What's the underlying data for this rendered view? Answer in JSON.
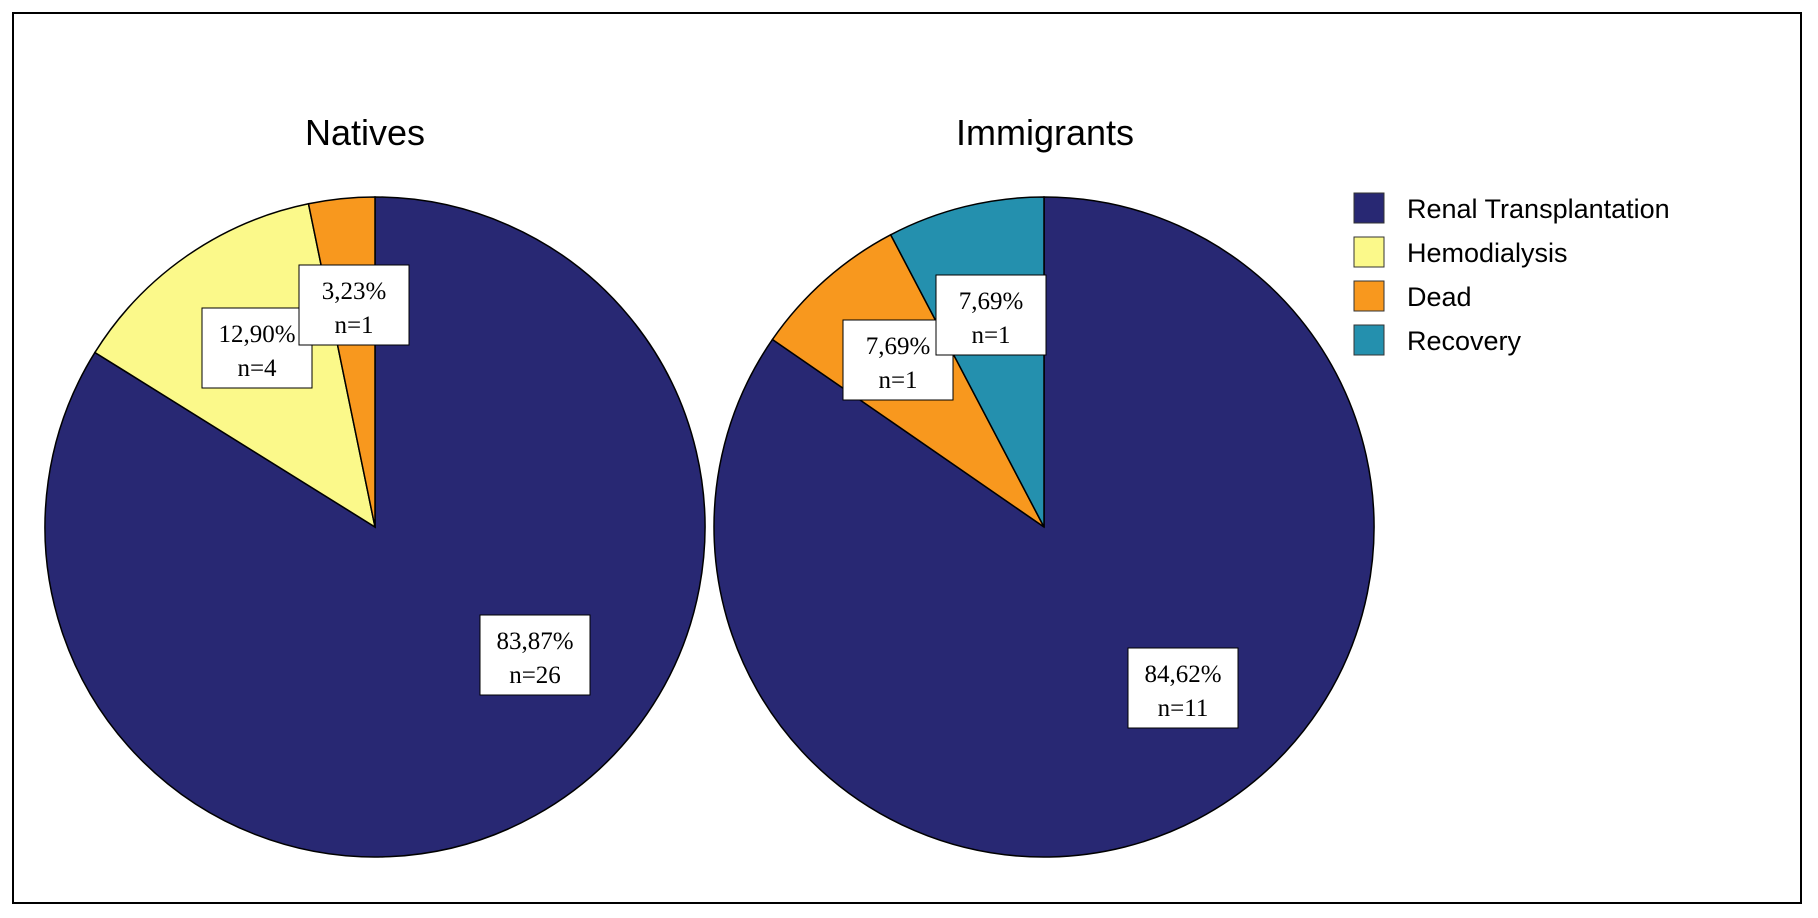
{
  "colors": {
    "Renal Transplantation": "#282873",
    "Hemodialysis": "#fbf98a",
    "Dead": "#f8981e",
    "Recovery": "#2490ae"
  },
  "legend": {
    "items": [
      "Renal Transplantation",
      "Hemodialysis",
      "Dead",
      "Recovery"
    ]
  },
  "chart_data": [
    {
      "type": "pie",
      "title": "Natives",
      "slices": [
        {
          "category": "Renal Transplantation",
          "percent": 83.87,
          "n": 26,
          "label_pct": "83,87%",
          "label_n": "n=26"
        },
        {
          "category": "Hemodialysis",
          "percent": 12.9,
          "n": 4,
          "label_pct": "12,90%",
          "label_n": "n=4"
        },
        {
          "category": "Dead",
          "percent": 3.23,
          "n": 1,
          "label_pct": "3,23%",
          "label_n": "n=1"
        }
      ]
    },
    {
      "type": "pie",
      "title": "Immigrants",
      "slices": [
        {
          "category": "Renal Transplantation",
          "percent": 84.62,
          "n": 11,
          "label_pct": "84,62%",
          "label_n": "n=11"
        },
        {
          "category": "Dead",
          "percent": 7.69,
          "n": 1,
          "label_pct": "7,69%",
          "label_n": "n=1"
        },
        {
          "category": "Recovery",
          "percent": 7.69,
          "n": 1,
          "label_pct": "7,69%",
          "label_n": "n=1"
        }
      ]
    }
  ]
}
